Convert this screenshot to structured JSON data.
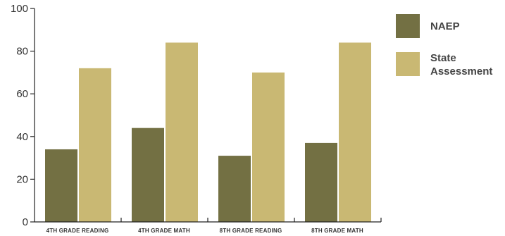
{
  "chart_data": {
    "type": "bar",
    "categories": [
      "4TH GRADE READING",
      "4TH GRADE MATH",
      "8TH GRADE READING",
      "8TH GRADE MATH"
    ],
    "series": [
      {
        "name": "NAEP",
        "values": [
          34,
          44,
          31,
          37
        ],
        "color": "#737043"
      },
      {
        "name": "State Assessment",
        "values": [
          72,
          84,
          70,
          84
        ],
        "color": "#c9b873"
      }
    ],
    "yticks": [
      0,
      20,
      40,
      60,
      80,
      100
    ],
    "ylim": [
      0,
      100
    ],
    "grid": false,
    "legend_position": "right"
  }
}
